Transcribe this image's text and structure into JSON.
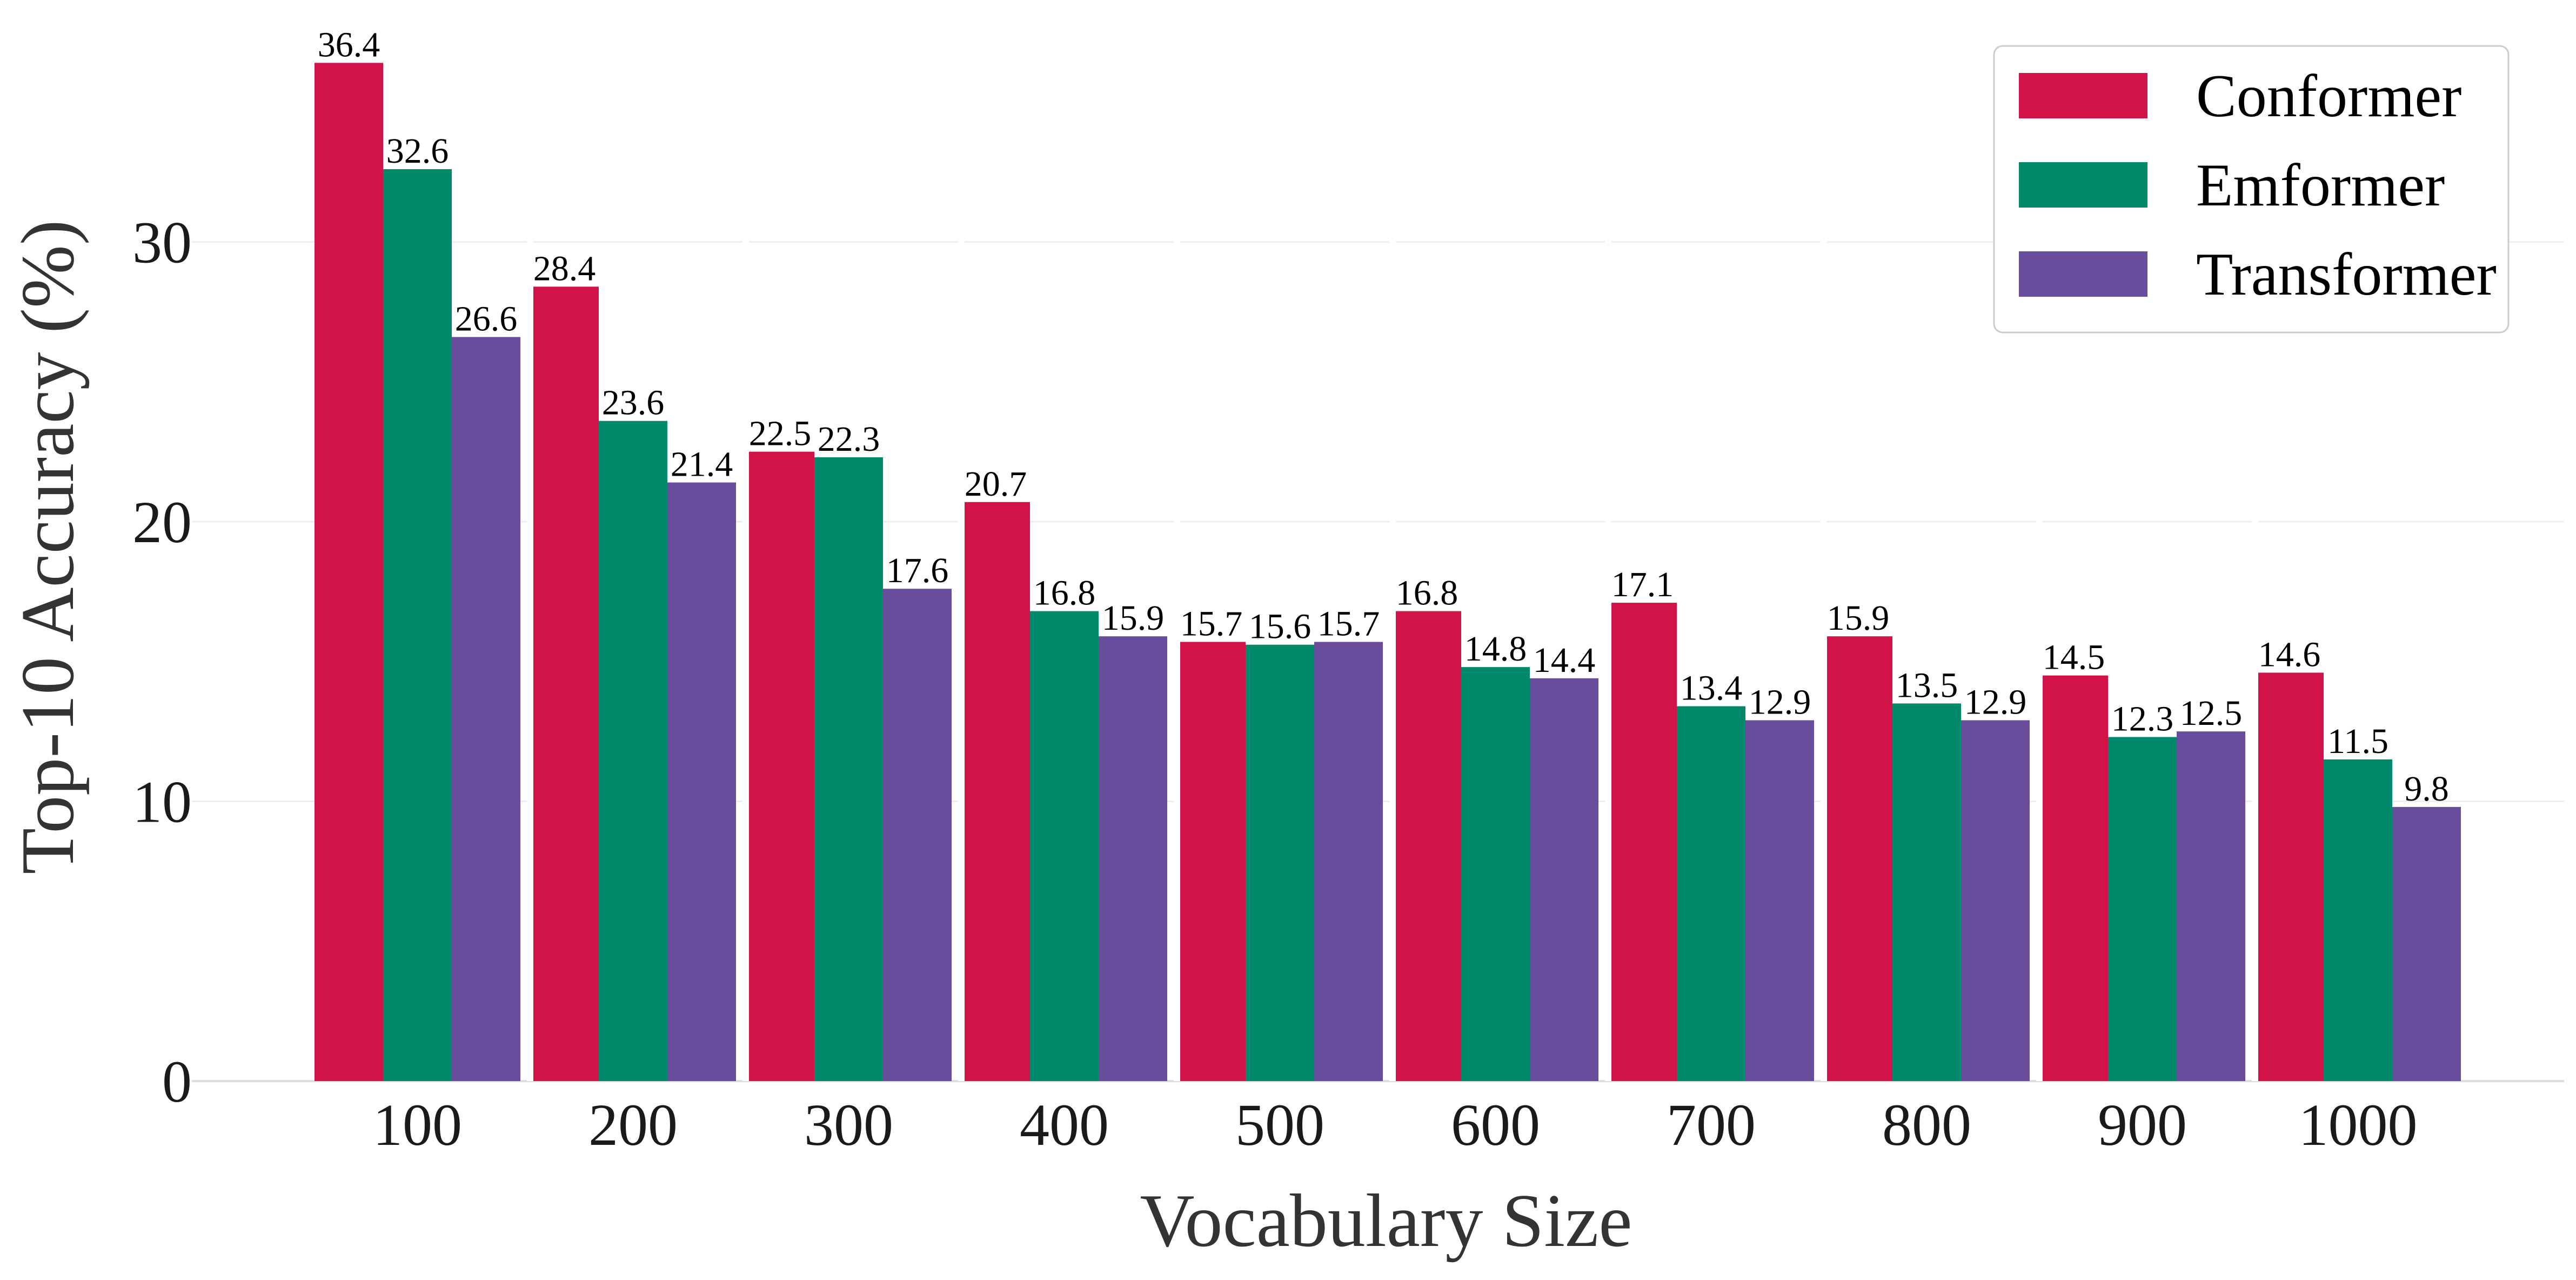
{
  "chart_data": {
    "type": "bar",
    "xlabel": "Vocabulary Size",
    "ylabel": "Top-10 Accuracy (%)",
    "categories": [
      "100",
      "200",
      "300",
      "400",
      "500",
      "600",
      "700",
      "800",
      "900",
      "1000"
    ],
    "yticks": [
      "0",
      "10",
      "20",
      "30"
    ],
    "ylim": [
      0,
      37
    ],
    "grid": "horizontal",
    "legend_position": "top-right",
    "series": [
      {
        "name": "Conformer",
        "color": "#d1134a",
        "values": [
          36.4,
          28.4,
          22.5,
          20.7,
          15.7,
          16.8,
          17.1,
          15.9,
          14.5,
          14.6
        ]
      },
      {
        "name": "Emformer",
        "color": "#00896b",
        "values": [
          32.6,
          23.6,
          22.3,
          16.8,
          15.6,
          14.8,
          13.4,
          13.5,
          12.3,
          11.5
        ]
      },
      {
        "name": "Transformer",
        "color": "#6a4c9c",
        "values": [
          26.6,
          21.4,
          17.6,
          15.9,
          15.7,
          14.4,
          12.9,
          12.9,
          12.5,
          9.8
        ]
      }
    ]
  }
}
